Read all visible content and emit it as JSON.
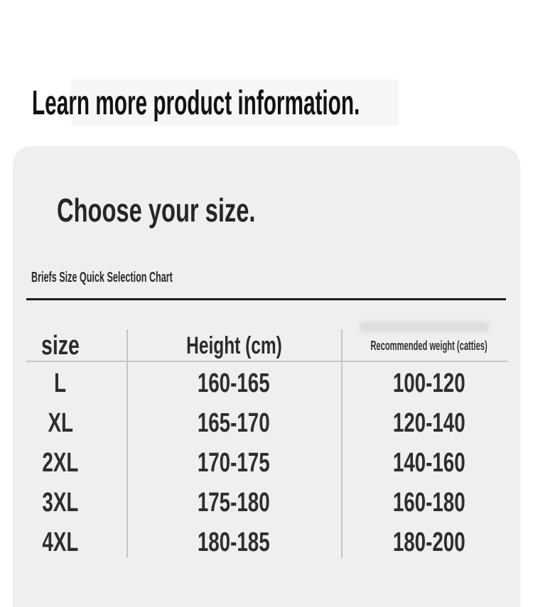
{
  "colors": {
    "page_bg": "#ffffff",
    "card_bg": "#efefef",
    "heading_text": "#121212",
    "table_text": "#2e2e2e",
    "divider_dark": "#1e1e1e",
    "divider_light": "#c6c6c6"
  },
  "page": {
    "heading": "Learn more product information."
  },
  "card": {
    "title": "Choose your size.",
    "subtitle": "Briefs Size Quick Selection Chart"
  },
  "size_table": {
    "headers": [
      "size",
      "Height (cm)",
      "Recommended weight (catties)"
    ],
    "rows": [
      [
        "L",
        "160-165",
        "100-120"
      ],
      [
        "XL",
        "165-170",
        "120-140"
      ],
      [
        "2XL",
        "170-175",
        "140-160"
      ],
      [
        "3XL",
        "175-180",
        "160-180"
      ],
      [
        "4XL",
        "180-185",
        "180-200"
      ]
    ]
  }
}
